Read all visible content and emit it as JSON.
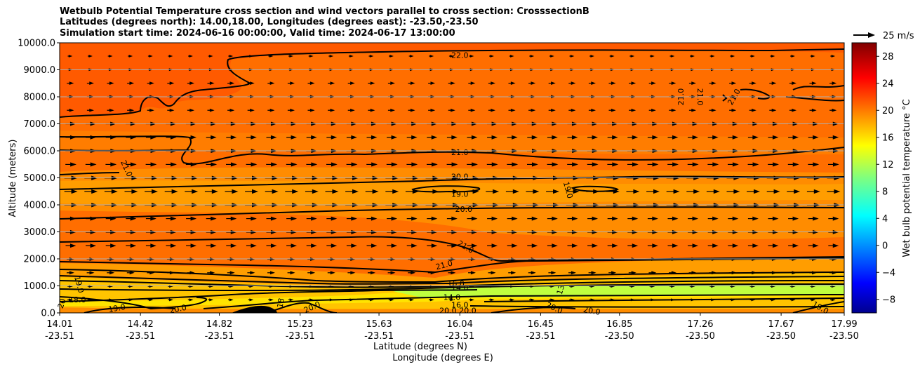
{
  "chart_data": {
    "type": "heatmap",
    "title_lines": [
      "Wetbulb Potential Temperature cross section and wind vectors parallel to cross section: CrosssectionB",
      "Latitudes (degrees north): 14.00,18.00, Longitudes (degrees east): -23.50,-23.50",
      "Simulation start time: 2024-06-16 00:00:00, Valid time: 2024-06-17 13:00:00"
    ],
    "ylabel": "Altitude (meters)",
    "xlabel": "Latitude (degrees N)",
    "xlabel2": "Longitude (degrees E)",
    "ylim": [
      0,
      10000
    ],
    "xlim": [
      14.01,
      17.99
    ],
    "y_ticks": [
      "0.0",
      "1000.0",
      "2000.0",
      "3000.0",
      "4000.0",
      "5000.0",
      "6000.0",
      "7000.0",
      "8000.0",
      "9000.0",
      "10000.0"
    ],
    "x_ticks": [
      {
        "lat": "14.01",
        "lon": "-23.51"
      },
      {
        "lat": "14.42",
        "lon": "-23.51"
      },
      {
        "lat": "14.82",
        "lon": "-23.51"
      },
      {
        "lat": "15.23",
        "lon": "-23.51"
      },
      {
        "lat": "15.63",
        "lon": "-23.51"
      },
      {
        "lat": "16.04",
        "lon": "-23.51"
      },
      {
        "lat": "16.45",
        "lon": "-23.51"
      },
      {
        "lat": "16.85",
        "lon": "-23.50"
      },
      {
        "lat": "17.26",
        "lon": "-23.50"
      },
      {
        "lat": "17.67",
        "lon": "-23.50"
      },
      {
        "lat": "17.99",
        "lon": "-23.50"
      }
    ],
    "grid": "horizontal",
    "colorbar": {
      "label": "Wet bulb potential temperature $^\\circ$C",
      "label_display": "Wet bulb potential temperature °C",
      "min": -10,
      "max": 30,
      "ticks": [
        "28",
        "24",
        "20",
        "16",
        "12",
        "8",
        "4",
        "0",
        "−4",
        "−8"
      ],
      "colormap": "jet"
    },
    "quiver_key": {
      "label": "25 m/s"
    },
    "contour_labels": [
      {
        "text": "22.0",
        "lat": 16.04,
        "alt": 9550,
        "rot": 0
      },
      {
        "text": "21.0",
        "lat": 16.04,
        "alt": 5950,
        "rot": 0
      },
      {
        "text": "20.0",
        "lat": 16.04,
        "alt": 5050,
        "rot": 0
      },
      {
        "text": "19.0",
        "lat": 16.04,
        "alt": 4400,
        "rot": 0
      },
      {
        "text": "20.0",
        "lat": 16.06,
        "alt": 3850,
        "rot": 0
      },
      {
        "text": "21.0",
        "lat": 16.07,
        "alt": 2450,
        "rot": 30
      },
      {
        "text": "21.0",
        "lat": 15.96,
        "alt": 1780,
        "rot": -15
      },
      {
        "text": "21.0",
        "lat": 14.35,
        "alt": 5350,
        "rot": 65
      },
      {
        "text": "19.0",
        "lat": 16.59,
        "alt": 4550,
        "rot": 75
      },
      {
        "text": "21.0",
        "lat": 17.16,
        "alt": 8000,
        "rot": -90
      },
      {
        "text": "21.0",
        "lat": 17.26,
        "alt": 8000,
        "rot": 90
      },
      {
        "text": "21.0",
        "lat": 17.43,
        "alt": 8000,
        "rot": -60
      },
      {
        "text": "16.0",
        "lat": 16.02,
        "alt": 1090,
        "rot": 0
      },
      {
        "text": "14.0",
        "lat": 16.04,
        "alt": 930,
        "rot": 0
      },
      {
        "text": "14.0",
        "lat": 16.0,
        "alt": 590,
        "rot": 0
      },
      {
        "text": "16.0",
        "lat": 16.04,
        "alt": 300,
        "rot": 0
      },
      {
        "text": "20.0",
        "lat": 15.98,
        "alt": 90,
        "rot": 0
      },
      {
        "text": "20.0",
        "lat": 16.08,
        "alt": 90,
        "rot": 0
      },
      {
        "text": "13",
        "lat": 16.55,
        "alt": 860,
        "rot": -75
      },
      {
        "text": "19.0",
        "lat": 14.11,
        "alt": 1050,
        "rot": 75
      },
      {
        "text": "18.0",
        "lat": 14.1,
        "alt": 490,
        "rot": 0
      },
      {
        "text": "19.0",
        "lat": 14.3,
        "alt": 180,
        "rot": -10
      },
      {
        "text": "20",
        "lat": 14.02,
        "alt": 350,
        "rot": -70
      },
      {
        "text": "20.0",
        "lat": 14.61,
        "alt": 150,
        "rot": -12
      },
      {
        "text": "20.0",
        "lat": 15.29,
        "alt": 220,
        "rot": -25
      },
      {
        "text": "18",
        "lat": 15.13,
        "alt": 370,
        "rot": -80
      },
      {
        "text": "20.0",
        "lat": 16.52,
        "alt": 190,
        "rot": 25
      },
      {
        "text": "20.0",
        "lat": 16.71,
        "alt": 80,
        "rot": 10
      },
      {
        "text": "19.0",
        "lat": 17.87,
        "alt": 200,
        "rot": 30
      }
    ]
  }
}
